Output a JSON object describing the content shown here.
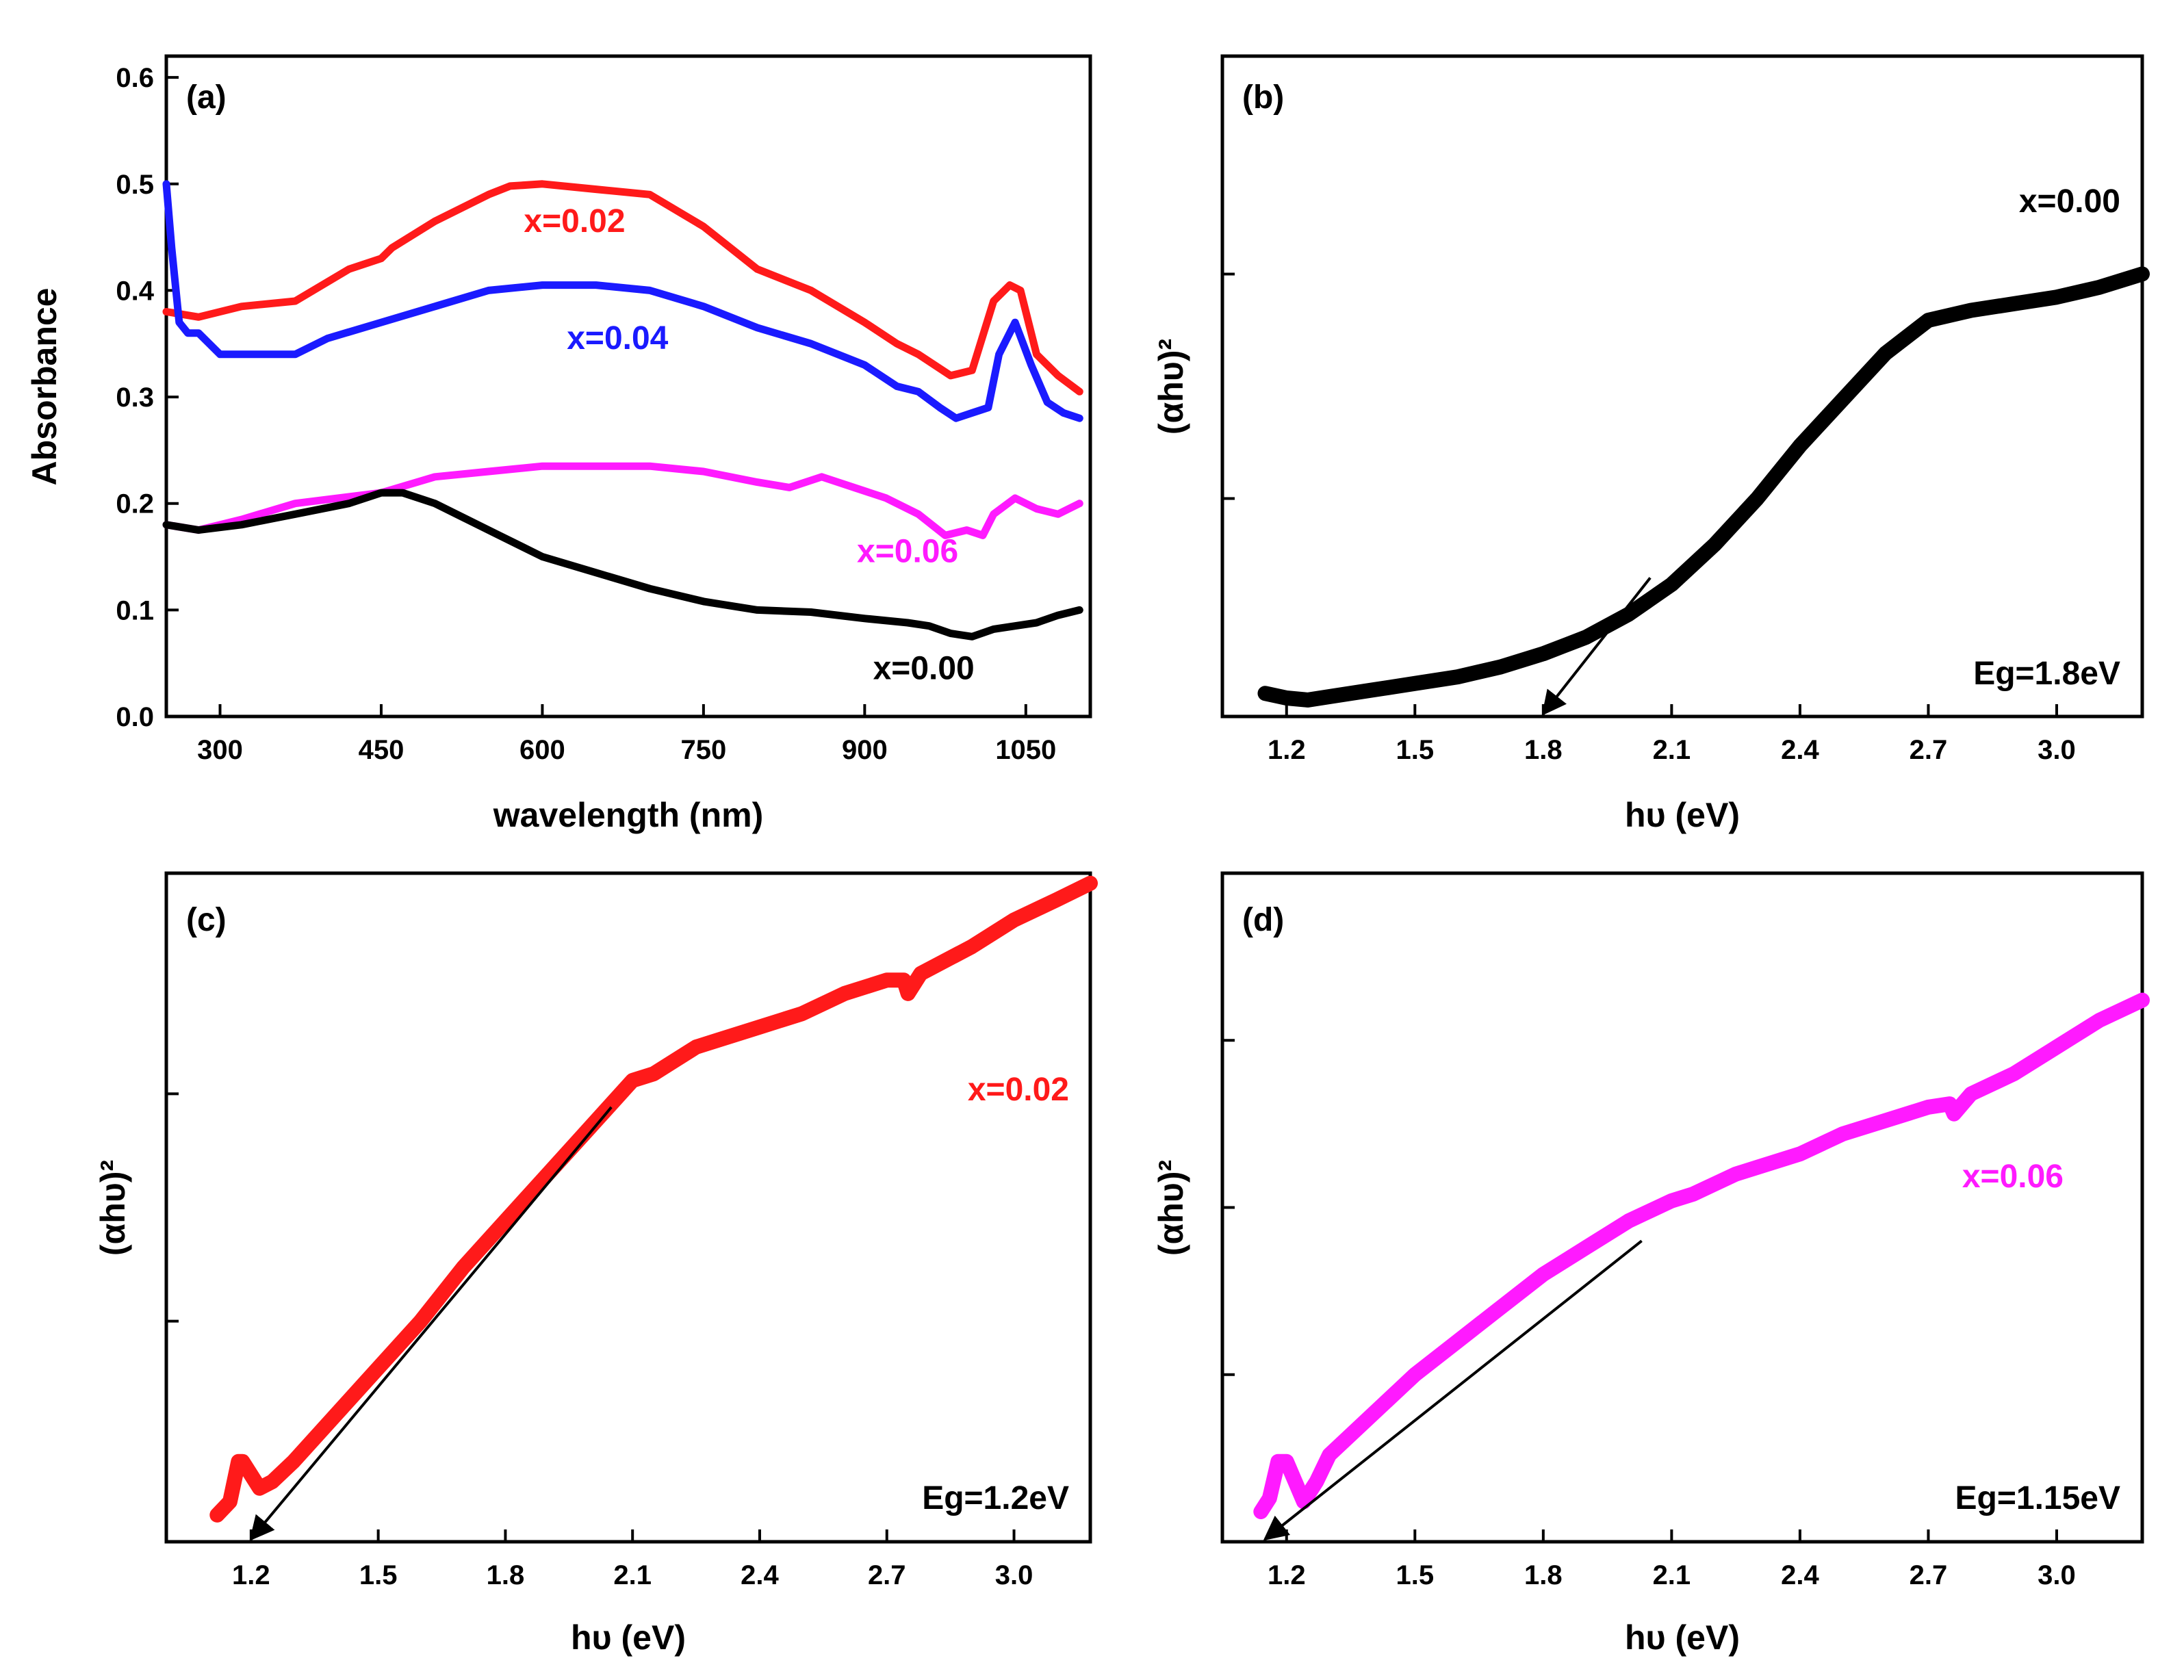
{
  "chart_data": [
    {
      "id": "a",
      "type": "line",
      "panel_label": "(a)",
      "xlabel": "wavelength (nm)",
      "ylabel": "Absorbance",
      "xlim": [
        250,
        1110
      ],
      "ylim": [
        0,
        0.62
      ],
      "xticks": [
        300,
        450,
        600,
        750,
        900,
        1050
      ],
      "yticks": [
        0.0,
        0.1,
        0.2,
        0.3,
        0.4,
        0.5,
        0.6
      ],
      "ytick_labels": [
        "0.0",
        "0.1",
        "0.2",
        "0.3",
        "0.4",
        "0.5",
        "0.6"
      ],
      "series": [
        {
          "name": "x=0.02",
          "color": "#ff1a1a",
          "x": [
            250,
            280,
            320,
            370,
            420,
            450,
            460,
            500,
            550,
            570,
            600,
            650,
            700,
            750,
            800,
            850,
            900,
            930,
            950,
            980,
            1000,
            1020,
            1035,
            1045,
            1060,
            1080,
            1100
          ],
          "y": [
            0.38,
            0.375,
            0.385,
            0.39,
            0.42,
            0.43,
            0.44,
            0.465,
            0.49,
            0.498,
            0.5,
            0.495,
            0.49,
            0.46,
            0.42,
            0.4,
            0.37,
            0.35,
            0.34,
            0.32,
            0.325,
            0.39,
            0.405,
            0.4,
            0.34,
            0.32,
            0.305
          ]
        },
        {
          "name": "x=0.04",
          "color": "#1a1aff",
          "x": [
            250,
            255,
            262,
            270,
            280,
            300,
            350,
            370,
            400,
            450,
            500,
            550,
            600,
            650,
            700,
            750,
            800,
            850,
            900,
            930,
            950,
            970,
            985,
            1000,
            1015,
            1025,
            1040,
            1055,
            1070,
            1085,
            1100
          ],
          "y": [
            0.5,
            0.44,
            0.37,
            0.36,
            0.36,
            0.34,
            0.34,
            0.34,
            0.355,
            0.37,
            0.385,
            0.4,
            0.405,
            0.405,
            0.4,
            0.385,
            0.365,
            0.35,
            0.33,
            0.31,
            0.305,
            0.29,
            0.28,
            0.285,
            0.29,
            0.34,
            0.37,
            0.33,
            0.295,
            0.285,
            0.28
          ]
        },
        {
          "name": "x=0.06",
          "color": "#ff1aff",
          "x": [
            250,
            280,
            320,
            370,
            450,
            500,
            550,
            600,
            650,
            700,
            750,
            800,
            830,
            860,
            890,
            920,
            950,
            975,
            995,
            1010,
            1020,
            1040,
            1060,
            1080,
            1100
          ],
          "y": [
            0.18,
            0.175,
            0.185,
            0.2,
            0.21,
            0.225,
            0.23,
            0.235,
            0.235,
            0.235,
            0.23,
            0.22,
            0.215,
            0.225,
            0.215,
            0.205,
            0.19,
            0.17,
            0.175,
            0.17,
            0.19,
            0.205,
            0.195,
            0.19,
            0.2
          ]
        },
        {
          "name": "x=0.00",
          "color": "#000000",
          "x": [
            250,
            280,
            320,
            370,
            420,
            450,
            470,
            500,
            530,
            560,
            600,
            650,
            700,
            750,
            800,
            850,
            900,
            940,
            960,
            980,
            1000,
            1020,
            1040,
            1060,
            1080,
            1100
          ],
          "y": [
            0.18,
            0.175,
            0.18,
            0.19,
            0.2,
            0.21,
            0.21,
            0.2,
            0.185,
            0.17,
            0.15,
            0.135,
            0.12,
            0.108,
            0.1,
            0.098,
            0.092,
            0.088,
            0.085,
            0.078,
            0.075,
            0.082,
            0.085,
            0.088,
            0.095,
            0.1
          ]
        }
      ],
      "annotations": [
        {
          "text": "x=0.02",
          "color": "#ff1a1a",
          "x": 630,
          "y": 0.455
        },
        {
          "text": "x=0.04",
          "color": "#1a1aff",
          "x": 670,
          "y": 0.345
        },
        {
          "text": "x=0.06",
          "color": "#ff1aff",
          "x": 940,
          "y": 0.145
        },
        {
          "text": "x=0.00",
          "color": "#000000",
          "x": 955,
          "y": 0.035
        }
      ]
    },
    {
      "id": "b",
      "type": "line",
      "panel_label": "(b)",
      "xlabel": "hυ (eV)",
      "ylabel": "(αhυ)²",
      "xlim": [
        1.05,
        3.2
      ],
      "ylim": [
        0,
        1.0
      ],
      "xticks": [
        1.2,
        1.5,
        1.8,
        2.1,
        2.4,
        2.7,
        3.0
      ],
      "xtick_labels": [
        "1.2",
        "1.5",
        "1.8",
        "2.1",
        "2.4",
        "2.7",
        "3.0"
      ],
      "yticks": [
        0.33,
        0.67
      ],
      "series": [
        {
          "name": "x=0.00",
          "color": "#000000",
          "x": [
            1.15,
            1.2,
            1.25,
            1.3,
            1.4,
            1.5,
            1.6,
            1.7,
            1.8,
            1.9,
            2.0,
            2.1,
            2.2,
            2.3,
            2.4,
            2.5,
            2.6,
            2.7,
            2.8,
            2.9,
            3.0,
            3.1,
            3.2
          ],
          "y": [
            0.035,
            0.028,
            0.025,
            0.03,
            0.04,
            0.05,
            0.06,
            0.075,
            0.095,
            0.12,
            0.155,
            0.2,
            0.26,
            0.33,
            0.41,
            0.48,
            0.55,
            0.6,
            0.615,
            0.625,
            0.635,
            0.65,
            0.67
          ]
        }
      ],
      "fit_line": {
        "from": [
          2.05,
          0.21
        ],
        "to": [
          1.8,
          0.0
        ]
      },
      "annotations": [
        {
          "text": "x=0.00",
          "color": "#000000",
          "position": "top-right"
        },
        {
          "text": "Eg=1.8eV",
          "color": "#000000",
          "position": "bottom-right"
        }
      ]
    },
    {
      "id": "c",
      "type": "line",
      "panel_label": "(c)",
      "xlabel": "hυ (eV)",
      "ylabel": "(αhυ)²",
      "xlim": [
        1.0,
        3.18
      ],
      "ylim": [
        0,
        1.0
      ],
      "xticks": [
        1.2,
        1.5,
        1.8,
        2.1,
        2.4,
        2.7,
        3.0
      ],
      "xtick_labels": [
        "1.2",
        "1.5",
        "1.8",
        "2.1",
        "2.4",
        "2.7",
        "3.0"
      ],
      "yticks": [
        0.33,
        0.67
      ],
      "series": [
        {
          "name": "x=0.02",
          "color": "#ff1a1a",
          "x": [
            1.12,
            1.15,
            1.17,
            1.18,
            1.2,
            1.22,
            1.25,
            1.3,
            1.4,
            1.5,
            1.6,
            1.7,
            1.8,
            1.9,
            2.0,
            2.1,
            2.15,
            2.2,
            2.25,
            2.3,
            2.4,
            2.5,
            2.6,
            2.7,
            2.74,
            2.75,
            2.78,
            2.9,
            3.0,
            3.1,
            3.18
          ],
          "y": [
            0.04,
            0.06,
            0.12,
            0.12,
            0.1,
            0.08,
            0.09,
            0.12,
            0.19,
            0.26,
            0.33,
            0.41,
            0.48,
            0.55,
            0.62,
            0.69,
            0.7,
            0.72,
            0.74,
            0.75,
            0.77,
            0.79,
            0.82,
            0.84,
            0.84,
            0.82,
            0.85,
            0.89,
            0.93,
            0.96,
            0.985
          ]
        }
      ],
      "fit_line": {
        "from": [
          2.05,
          0.65
        ],
        "to": [
          1.2,
          0.0
        ]
      },
      "annotations": [
        {
          "text": "x=0.02",
          "color": "#ff1a1a",
          "position": "upper-right"
        },
        {
          "text": "Eg=1.2eV",
          "color": "#000000",
          "position": "bottom-right"
        }
      ]
    },
    {
      "id": "d",
      "type": "line",
      "panel_label": "(d)",
      "xlabel": "hυ (eV)",
      "ylabel": "(αhυ)²",
      "xlim": [
        1.05,
        3.2
      ],
      "ylim": [
        0,
        1.0
      ],
      "xticks": [
        1.2,
        1.5,
        1.8,
        2.1,
        2.4,
        2.7,
        3.0
      ],
      "xtick_labels": [
        "1.2",
        "1.5",
        "1.8",
        "2.1",
        "2.4",
        "2.7",
        "3.0"
      ],
      "yticks": [
        0.25,
        0.5,
        0.75
      ],
      "series": [
        {
          "name": "x=0.06",
          "color": "#ff1aff",
          "x": [
            1.14,
            1.16,
            1.18,
            1.2,
            1.22,
            1.24,
            1.27,
            1.3,
            1.4,
            1.5,
            1.6,
            1.7,
            1.8,
            1.9,
            2.0,
            2.1,
            2.15,
            2.2,
            2.25,
            2.3,
            2.4,
            2.5,
            2.6,
            2.7,
            2.75,
            2.76,
            2.8,
            2.9,
            3.0,
            3.1,
            3.2
          ],
          "y": [
            0.045,
            0.065,
            0.12,
            0.12,
            0.09,
            0.06,
            0.09,
            0.13,
            0.19,
            0.25,
            0.3,
            0.35,
            0.4,
            0.44,
            0.48,
            0.51,
            0.52,
            0.535,
            0.55,
            0.56,
            0.58,
            0.61,
            0.63,
            0.65,
            0.655,
            0.64,
            0.67,
            0.7,
            0.74,
            0.78,
            0.81
          ]
        }
      ],
      "fit_line": {
        "from": [
          2.03,
          0.45
        ],
        "to": [
          1.15,
          0.0
        ]
      },
      "annotations": [
        {
          "text": "x=0.06",
          "color": "#ff1aff",
          "position": "middle-right"
        },
        {
          "text": "Eg=1.15eV",
          "color": "#000000",
          "position": "bottom-right"
        }
      ]
    }
  ]
}
